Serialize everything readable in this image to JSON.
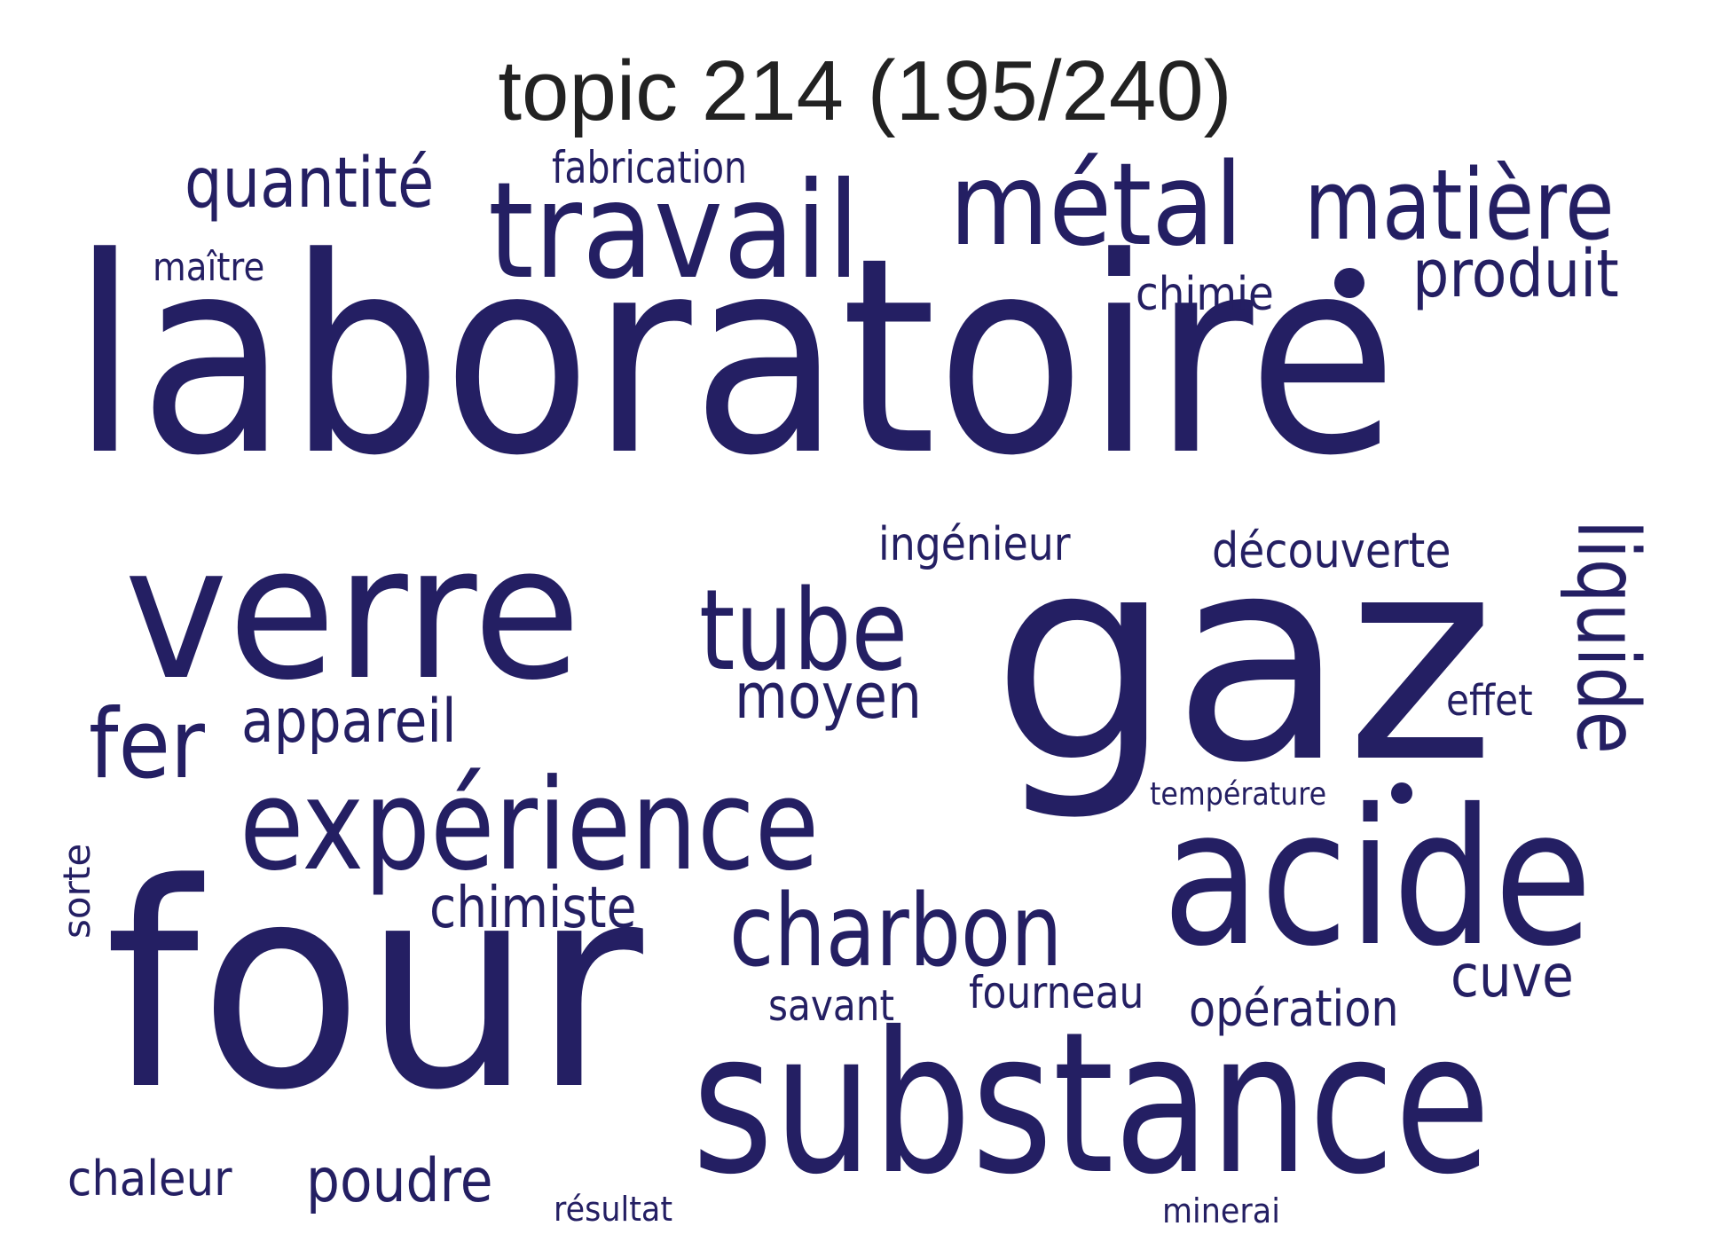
{
  "title": "topic 214 (195/240)",
  "colors": {
    "word": "#241f63",
    "title": "#222222",
    "background": "#ffffff"
  },
  "words": {
    "laboratoire": "laboratoire",
    "gaz": "gaz",
    "four": "four",
    "substance": "substance",
    "verre": "verre",
    "acide": "acide",
    "experience": "expérience",
    "travail": "travail",
    "metal": "métal",
    "matiere": "matière",
    "tube": "tube",
    "charbon": "charbon",
    "fer": "fer",
    "liquide": "liquide",
    "moyen": "moyen",
    "quantite": "quantité",
    "produit": "produit",
    "appareil": "appareil",
    "poudre": "poudre",
    "chimiste": "chimiste",
    "cuve": "cuve",
    "operation": "opération",
    "chaleur": "chaleur",
    "decouverte": "découverte",
    "ingenieur": "ingénieur",
    "chimie": "chimie",
    "fabrication": "fabrication",
    "fourneau": "fourneau",
    "effet": "effet",
    "savant": "savant",
    "maitre": "maître",
    "sorte": "sorte",
    "temperature": "température",
    "resultat": "résultat",
    "minerai": "minerai"
  }
}
